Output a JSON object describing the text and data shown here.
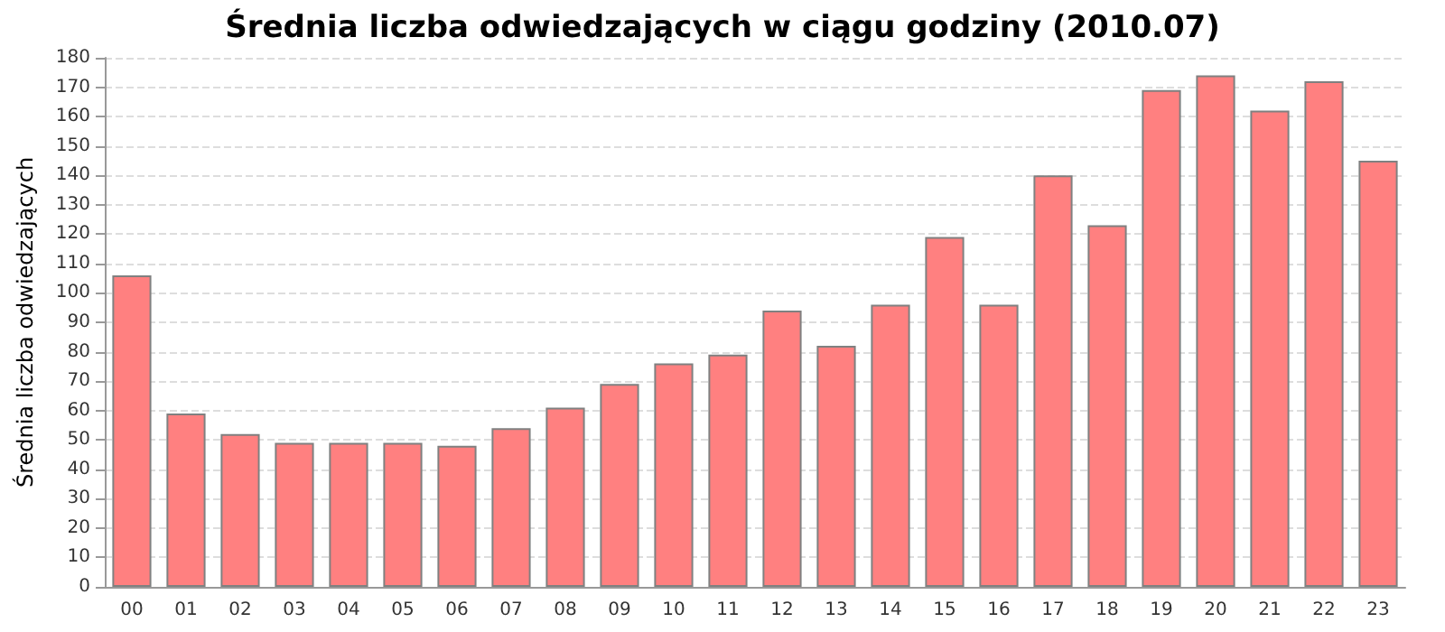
{
  "chart_data": {
    "type": "bar",
    "title": "Średnia liczba odwiedzających w ciągu godziny (2010.07)",
    "ylabel": "Średnia liczba odwiedzających",
    "categories": [
      "00",
      "01",
      "02",
      "03",
      "04",
      "05",
      "06",
      "07",
      "08",
      "09",
      "10",
      "11",
      "12",
      "13",
      "14",
      "15",
      "16",
      "17",
      "18",
      "19",
      "20",
      "21",
      "22",
      "23"
    ],
    "values": [
      106,
      59,
      52,
      49,
      49,
      49,
      48,
      54,
      61,
      69,
      76,
      79,
      94,
      82,
      96,
      119,
      96,
      140,
      123,
      169,
      174,
      162,
      172,
      145
    ],
    "color": "#ff8080",
    "ylim": [
      0,
      180
    ],
    "yticks": [
      0,
      10,
      20,
      30,
      40,
      50,
      60,
      70,
      80,
      90,
      100,
      110,
      120,
      130,
      140,
      150,
      160,
      170,
      180
    ],
    "grid": "y"
  }
}
